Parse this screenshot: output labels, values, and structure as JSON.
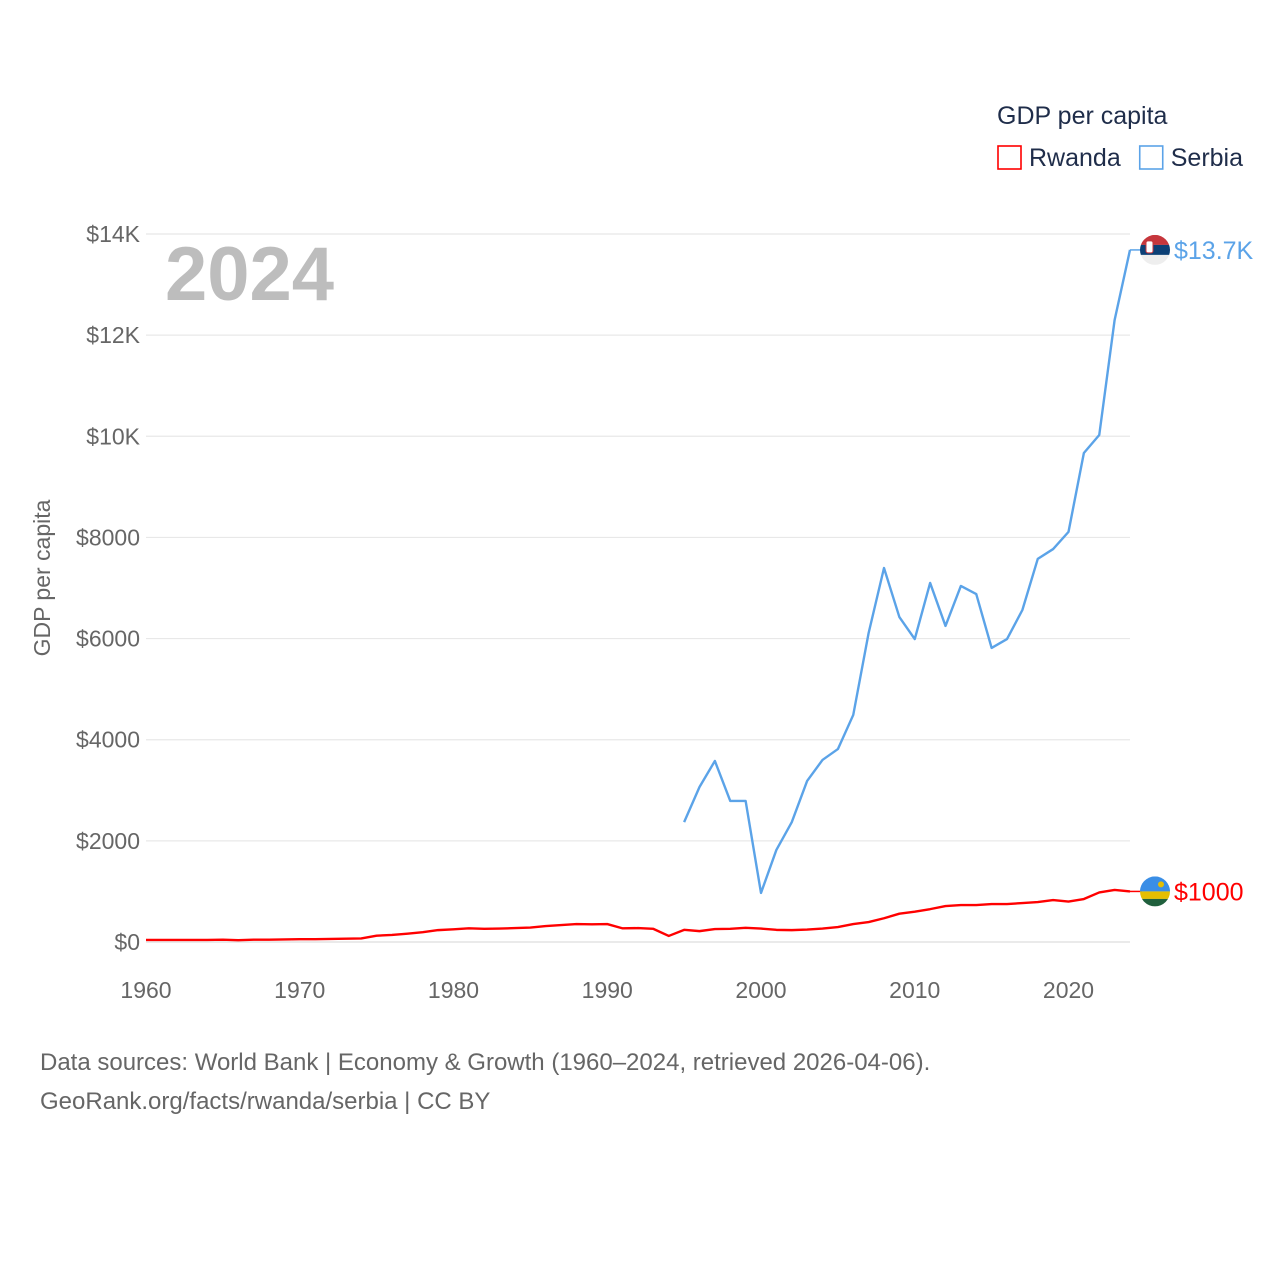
{
  "chart_data": {
    "type": "line",
    "title": "GDP per capita",
    "ylabel": "GDP per capita",
    "xlabel": "",
    "year_label": "2024",
    "xlim": [
      1960,
      2024
    ],
    "ylim": [
      0,
      14000
    ],
    "x_ticks": [
      "1960",
      "1970",
      "1980",
      "1990",
      "2000",
      "2010",
      "2020"
    ],
    "y_ticks": [
      {
        "value": 0,
        "label": "$0"
      },
      {
        "value": 2000,
        "label": "$2000"
      },
      {
        "value": 4000,
        "label": "$4000"
      },
      {
        "value": 6000,
        "label": "$6000"
      },
      {
        "value": 8000,
        "label": "$8000"
      },
      {
        "value": 10000,
        "label": "$10K"
      },
      {
        "value": 12000,
        "label": "$12K"
      },
      {
        "value": 14000,
        "label": "$14K"
      }
    ],
    "grid": true,
    "legend_position": "top-right",
    "series": [
      {
        "name": "Rwanda",
        "color": "#ff0000",
        "end_label": "$1000",
        "flag": "rwanda-flag",
        "x": [
          1960,
          1961,
          1962,
          1963,
          1964,
          1965,
          1966,
          1967,
          1968,
          1969,
          1970,
          1971,
          1972,
          1973,
          1974,
          1975,
          1976,
          1977,
          1978,
          1979,
          1980,
          1981,
          1982,
          1983,
          1984,
          1985,
          1986,
          1987,
          1988,
          1989,
          1990,
          1991,
          1992,
          1993,
          1994,
          1995,
          1996,
          1997,
          1998,
          1999,
          2000,
          2001,
          2002,
          2003,
          2004,
          2005,
          2006,
          2007,
          2008,
          2009,
          2010,
          2011,
          2012,
          2013,
          2014,
          2015,
          2016,
          2017,
          2018,
          2019,
          2020,
          2021,
          2022,
          2023,
          2024
        ],
        "values": [
          40,
          40,
          40,
          40,
          40,
          45,
          35,
          45,
          45,
          50,
          55,
          55,
          60,
          65,
          70,
          125,
          140,
          165,
          195,
          235,
          250,
          270,
          260,
          265,
          275,
          285,
          315,
          335,
          355,
          350,
          355,
          270,
          275,
          260,
          120,
          240,
          215,
          255,
          260,
          280,
          265,
          240,
          235,
          245,
          265,
          295,
          355,
          395,
          470,
          560,
          600,
          650,
          710,
          730,
          730,
          750,
          750,
          770,
          790,
          830,
          800,
          850,
          980,
          1030,
          1000
        ]
      },
      {
        "name": "Serbia",
        "color": "#5ba3e8",
        "end_label": "$13.7K",
        "flag": "serbia-flag",
        "x": [
          1995,
          1996,
          1997,
          1998,
          1999,
          2000,
          2001,
          2002,
          2003,
          2004,
          2005,
          2006,
          2007,
          2008,
          2009,
          2010,
          2011,
          2012,
          2013,
          2014,
          2015,
          2016,
          2017,
          2018,
          2019,
          2020,
          2021,
          2022,
          2023,
          2024
        ],
        "values": [
          2370,
          3065,
          3580,
          2790,
          2790,
          970,
          1820,
          2370,
          3185,
          3600,
          3815,
          4490,
          6110,
          7395,
          6425,
          5990,
          7100,
          6250,
          7040,
          6880,
          5815,
          5990,
          6565,
          7575,
          7770,
          8110,
          9670,
          10025,
          12300,
          13685
        ]
      }
    ]
  },
  "footer": {
    "line1": "Data sources: World Bank | Economy & Growth (1960–2024, retrieved 2026-04-06).",
    "line2": "GeoRank.org/facts/rwanda/serbia | CC BY"
  }
}
